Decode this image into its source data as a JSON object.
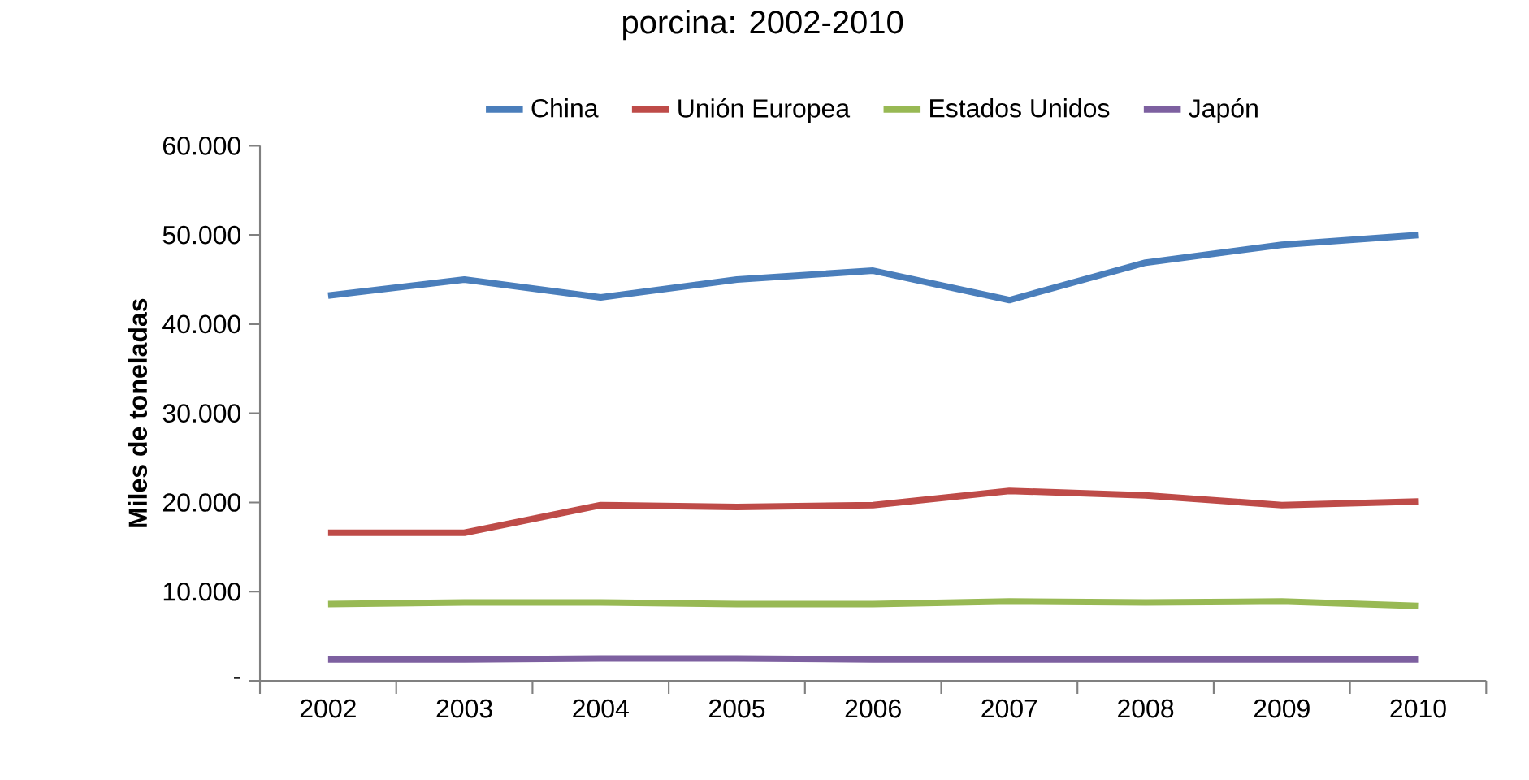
{
  "chart_data": {
    "type": "line",
    "title": "porcina: 2002-2010",
    "ylabel": "**Miles de toneladas**",
    "categories": [
      "2002",
      "2003",
      "2004",
      "2005",
      "2006",
      "2007",
      "2008",
      "2009",
      "2010"
    ],
    "series": [
      {
        "name": "China",
        "color": "#4a7ebb",
        "values": [
          43200,
          45000,
          43000,
          45000,
          46000,
          42700,
          46900,
          48900,
          50000
        ]
      },
      {
        "name": "Unión Europea",
        "color": "#be4b48",
        "values": [
          16600,
          16600,
          19700,
          19500,
          19700,
          21300,
          20800,
          19700,
          20100
        ]
      },
      {
        "name": "Estados Unidos",
        "color": "#98b954",
        "values": [
          8600,
          8800,
          8800,
          8600,
          8600,
          8900,
          8800,
          8900,
          8400
        ]
      },
      {
        "name": "Japón",
        "color": "#7d60a0",
        "values": [
          2400,
          2400,
          2500,
          2500,
          2400,
          2400,
          2400,
          2400,
          2400
        ]
      }
    ],
    "ylim": [
      0,
      60000
    ],
    "yticks": [
      {
        "value": 0,
        "label": "-"
      },
      {
        "value": 10000,
        "label": "10.000"
      },
      {
        "value": 20000,
        "label": "20.000"
      },
      {
        "value": 30000,
        "label": "30.000"
      },
      {
        "value": 40000,
        "label": "40.000"
      },
      {
        "value": 50000,
        "label": "50.000"
      },
      {
        "value": 60000,
        "label": "60.000"
      }
    ],
    "legend": "top",
    "grid": false,
    "marker": "none",
    "line_style": "solid"
  }
}
